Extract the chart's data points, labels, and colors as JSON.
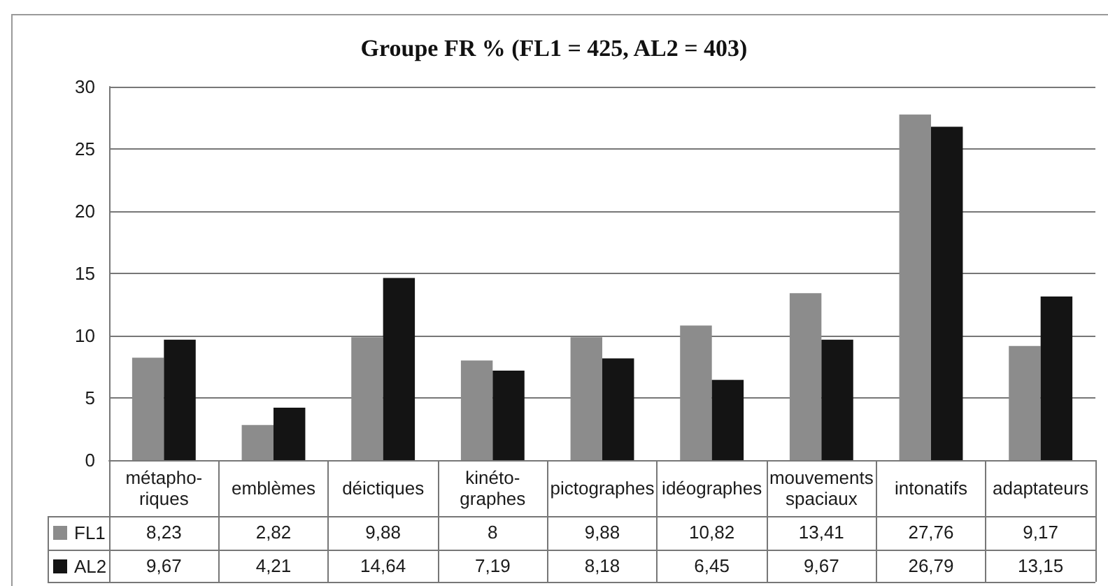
{
  "chart_data": {
    "type": "bar",
    "title": "Groupe FR % (FL1 = 425, AL2 = 403)",
    "categories": [
      "métapho-\nriques",
      "emblèmes",
      "déictiques",
      "kinéto-\ngraphes",
      "pictographes",
      "idéographes",
      "mouvements\nspaciaux",
      "intonatifs",
      "adaptateurs"
    ],
    "series": [
      {
        "name": "FL1",
        "color": "#8c8c8c",
        "values": [
          8.23,
          2.82,
          9.88,
          8,
          9.88,
          10.82,
          13.41,
          27.76,
          9.17
        ],
        "value_labels": [
          "8,23",
          "2,82",
          "9,88",
          "8",
          "9,88",
          "10,82",
          "13,41",
          "27,76",
          "9,17"
        ]
      },
      {
        "name": "AL2",
        "color": "#141414",
        "values": [
          9.67,
          4.21,
          14.64,
          7.19,
          8.18,
          6.45,
          9.67,
          26.79,
          13.15
        ],
        "value_labels": [
          "9,67",
          "4,21",
          "14,64",
          "7,19",
          "8,18",
          "6,45",
          "9,67",
          "26,79",
          "13,15"
        ]
      }
    ],
    "ylim": [
      0,
      30
    ],
    "yticks": [
      0,
      5,
      10,
      15,
      20,
      25,
      30
    ],
    "grid": "y",
    "legend": "bottom left"
  }
}
